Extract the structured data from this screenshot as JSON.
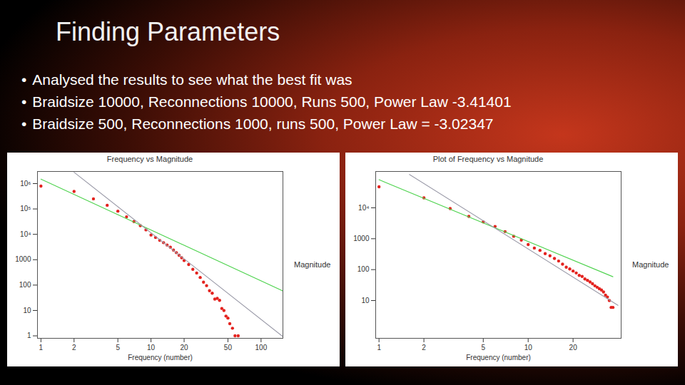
{
  "slide": {
    "title": "Finding Parameters",
    "bullets": [
      "Analysed the results to see what the best fit was",
      "Braidsize 10000, Reconnections 10000, Runs 500, Power Law -3.41401",
      "Braidsize 500, Reconnections 1000, runs 500, Power Law = -3.02347"
    ]
  },
  "chart_data": [
    {
      "type": "scatter",
      "title": "Frequency vs Magnitude",
      "xlabel": "Frequency (number)",
      "ylabel": "Magnitude",
      "log": true,
      "grid": false,
      "xlim": [
        0.93,
        158
      ],
      "ylim": [
        0.8,
        3000000
      ],
      "xticks": [
        1,
        2,
        5,
        10,
        20,
        50,
        100
      ],
      "yticks": [
        1,
        10,
        100,
        1000,
        {
          "value": 10000,
          "label": "10⁴"
        },
        {
          "value": 100000,
          "label": "10⁵"
        },
        {
          "value": 1000000,
          "label": "10⁶"
        }
      ],
      "series": [
        {
          "type": "scatter",
          "color": "#e3231f",
          "marker": "circle",
          "x": [
            1,
            2,
            3,
            4,
            5,
            6,
            7,
            8,
            9,
            10,
            11,
            12,
            13,
            14,
            15,
            16,
            17,
            18,
            19,
            20,
            22,
            24,
            26,
            28,
            30,
            32,
            34,
            36,
            38,
            40,
            42,
            44,
            46,
            48,
            50,
            52,
            55,
            58,
            62
          ],
          "values": [
            800000,
            490000,
            250000,
            140000,
            82000,
            49000,
            32000,
            22000,
            15000,
            9400,
            7500,
            5800,
            4700,
            3800,
            3100,
            2400,
            1900,
            1500,
            1200,
            930,
            650,
            420,
            300,
            200,
            130,
            95,
            60,
            48,
            28,
            30,
            25,
            12,
            10,
            6,
            5,
            3,
            2,
            1,
            1
          ]
        },
        {
          "type": "line",
          "color": "#4fd34f",
          "line_style": "solid",
          "x": [
            1,
            158
          ],
          "values": [
            1500000,
            59
          ]
        },
        {
          "type": "line",
          "color": "#9a9aa8",
          "line_style": "solid",
          "x": [
            2,
            158
          ],
          "values": [
            2800000,
            0.93
          ]
        }
      ]
    },
    {
      "type": "scatter",
      "title": "Plot of Frequency vs Magnitude",
      "xlabel": "Frequency (number)",
      "ylabel": "Magnitude",
      "log": true,
      "grid": false,
      "xlim": [
        0.95,
        42
      ],
      "ylim": [
        0.6,
        150000
      ],
      "xticks": [
        1,
        2,
        5,
        10,
        20
      ],
      "yticks": [
        10,
        100,
        1000,
        {
          "value": 10000,
          "label": "10⁴"
        }
      ],
      "series": [
        {
          "type": "scatter",
          "color": "#e3231f",
          "marker": "circle",
          "x": [
            1,
            2,
            3,
            4,
            5,
            6,
            7,
            8,
            9,
            10,
            11,
            12,
            13,
            14,
            15,
            16,
            17,
            18,
            19,
            20,
            21,
            22,
            23,
            24,
            25,
            26,
            27,
            28,
            29,
            30,
            31,
            32,
            33,
            34,
            35,
            36,
            37
          ],
          "values": [
            48000,
            21000,
            9500,
            5300,
            3500,
            2500,
            1700,
            1200,
            900,
            650,
            500,
            420,
            330,
            280,
            230,
            190,
            150,
            120,
            105,
            90,
            78,
            65,
            60,
            50,
            45,
            40,
            35,
            30,
            27,
            24,
            22,
            19,
            15,
            13,
            10,
            6,
            6
          ]
        },
        {
          "type": "line",
          "color": "#4fd34f",
          "line_style": "solid",
          "x": [
            1,
            37
          ],
          "values": [
            81000,
            59
          ]
        },
        {
          "type": "line",
          "color": "#9a9aa8",
          "line_style": "solid",
          "x": [
            1.6,
            40
          ],
          "values": [
            120000,
            7
          ]
        }
      ]
    }
  ]
}
